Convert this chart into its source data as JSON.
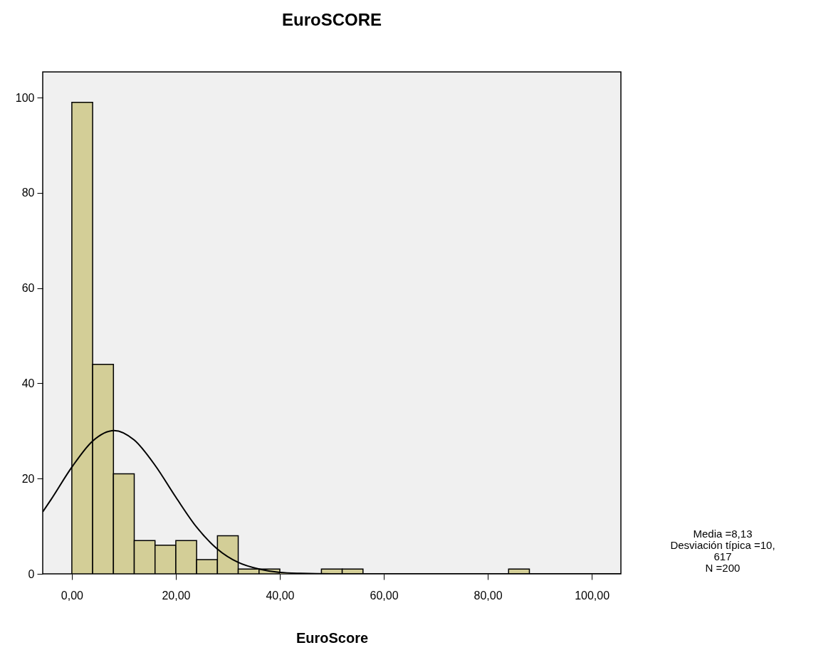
{
  "chart_data": {
    "type": "histogram",
    "title": "EuroSCORE",
    "xlabel": "EuroScore",
    "bins": [
      0,
      4,
      8,
      12,
      16,
      20,
      24,
      28,
      32,
      36,
      40,
      44,
      48,
      52,
      56,
      60,
      64,
      68,
      72,
      76,
      80,
      84,
      88
    ],
    "values": [
      99,
      44,
      21,
      7,
      6,
      7,
      3,
      8,
      1,
      1,
      0,
      0,
      1,
      1,
      0,
      0,
      0,
      0,
      0,
      0,
      0,
      1
    ],
    "color": "#d3ce97",
    "series": [
      {
        "type": "line",
        "color": "#000000",
        "x": [
          -5.6,
          -4,
          0,
          4,
          8.13,
          12,
          16,
          20,
          24,
          28,
          32,
          36,
          40,
          44,
          50,
          105.6
        ],
        "values": [
          13.0,
          15.6,
          22.4,
          27.9,
          30.1,
          28.1,
          22.8,
          16.1,
          9.8,
          5.2,
          2.4,
          1.0,
          0.3,
          0.1,
          0,
          0
        ]
      }
    ],
    "xlim": [
      -5.6,
      105.6
    ],
    "ylim": [
      0,
      105.4
    ],
    "xticks": [
      {
        "value": 0,
        "label": "0,00"
      },
      {
        "value": 20,
        "label": "20,00"
      },
      {
        "value": 40,
        "label": "40,00"
      },
      {
        "value": 60,
        "label": "60,00"
      },
      {
        "value": 80,
        "label": "80,00"
      },
      {
        "value": 100,
        "label": "100,00"
      }
    ],
    "yticks": [
      0,
      20,
      40,
      60,
      80,
      100
    ],
    "annotations": [
      "Media =8,13",
      "Desviación típica =10,",
      "617",
      "N =200"
    ]
  }
}
